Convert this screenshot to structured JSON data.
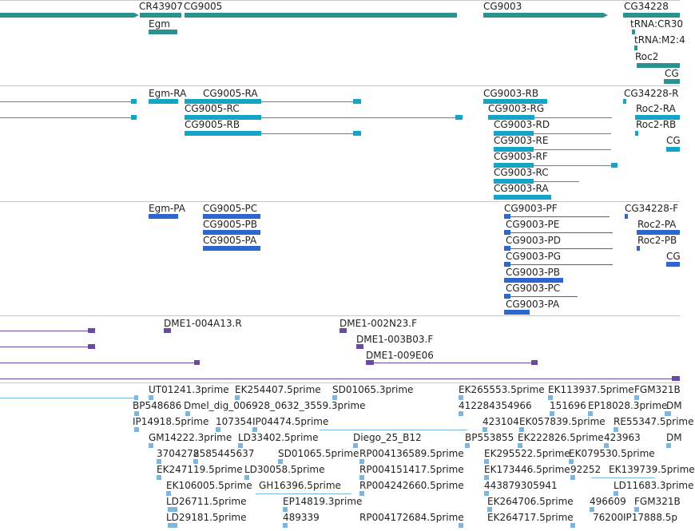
{
  "colors": {
    "gene": "#2b9191",
    "transcript": "#14a5c6",
    "protein": "#2d66cf",
    "clone": "#6a4aa1",
    "est": "#7db7dc",
    "border": "#c8c8c8"
  },
  "tracks": {
    "genes": {
      "labels": [
        "CR43907",
        "CG9005",
        "CG9003",
        "CG34228",
        "Egm",
        "tRNA:CR30",
        "tRNA:M2:4",
        "Roc2",
        "CG"
      ]
    },
    "transcripts": {
      "labels": [
        "Egm-RA",
        "CG9005-RA",
        "CG9005-RC",
        "CG9005-RB",
        "CG9003-RB",
        "CG9003-RG",
        "CG9003-RD",
        "CG9003-RE",
        "CG9003-RF",
        "CG9003-RC",
        "CG9003-RA",
        "CG34228-R",
        "Roc2-RA",
        "Roc2-RB",
        "CG"
      ]
    },
    "proteins": {
      "labels": [
        "Egm-PA",
        "CG9005-PC",
        "CG9005-PB",
        "CG9005-PA",
        "CG9003-PF",
        "CG9003-PE",
        "CG9003-PD",
        "CG9003-PG",
        "CG9003-PB",
        "CG9003-PC",
        "CG9003-PA",
        "CG34228-F",
        "Roc2-PA",
        "Roc2-PB",
        "CG"
      ]
    },
    "clones": {
      "labels": [
        "DME1-004A13.R",
        "DME1-002N23.F",
        "DME1-003B03.F",
        "DME1-009E06"
      ]
    },
    "ests": {
      "labels": [
        "UT01241.3prime",
        "EK254407.5prime",
        "SD01065.3prime",
        "EK265553.5prime",
        "EK113937.5prime",
        "FGM321B",
        "BP548686",
        "Dmel_dig_006928_0632_3559.3prime",
        "412284354966",
        "151696",
        "EP18028.3prime",
        "DM",
        "IP14918.5prime",
        "107354",
        "IP04474.5prime",
        "423104",
        "EK057839.5prime",
        "RE55347.5prime",
        "GM14222.3prime",
        "LD33402.5prime",
        "Diego_25_B12",
        "BP553855",
        "EK222826.5prime",
        "423963",
        "DM",
        "3704278",
        "2585445637",
        "SD01065.5prime",
        "RP004136589.5prime",
        "EK295522.5prime",
        "EK079530.5prime",
        "EK247119.5prime",
        "LD30058.5prime",
        "RP004151417.5prime",
        "EK173446.5prime",
        "92252",
        "EK139739.5prime",
        "EK106005.5prime",
        "GH16396.5prime",
        "RP004242660.5prime",
        "443879305941",
        "LD11683.3prime",
        "LD26711.5prime",
        "EP14819.3prime",
        "EK264706.5prime",
        "496609",
        "FGM321B",
        "LD29181.5prime",
        "489339",
        "RP004172684.5prime",
        "EK264717.5prime",
        "76200",
        "IP17888.5p"
      ]
    }
  }
}
